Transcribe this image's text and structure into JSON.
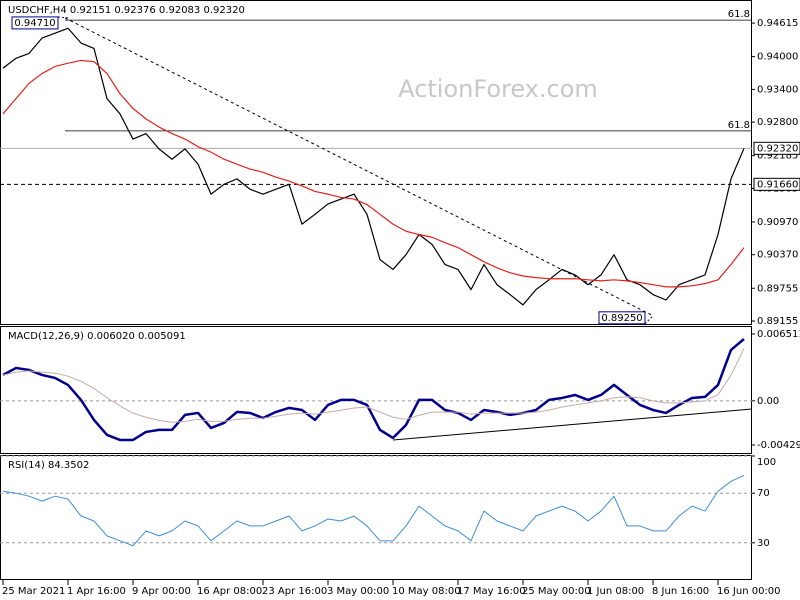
{
  "watermark": "ActionForex.com",
  "chart_data": [
    {
      "type": "line",
      "title": "USDCHF,H4  0.92151 0.92376 0.92083 0.92320",
      "categories": [
        "25 Mar 2021",
        null,
        null,
        null,
        null,
        "1 Apr 16:00",
        null,
        null,
        null,
        null,
        "9 Apr 00:00",
        null,
        null,
        null,
        null,
        "16 Apr 08:00",
        null,
        null,
        null,
        null,
        "23 Apr 16:00",
        null,
        null,
        null,
        null,
        "3 May 00:00",
        null,
        null,
        null,
        null,
        "10 May 08:00",
        null,
        null,
        null,
        null,
        "17 May 16:00",
        null,
        null,
        null,
        null,
        "25 May 00:00",
        null,
        null,
        null,
        null,
        "1 Jun 08:00",
        null,
        null,
        null,
        null,
        "8 Jun 16:00",
        null,
        null,
        null,
        null,
        "16 Jun 00:00",
        null,
        null
      ],
      "series": [
        {
          "color": "#000000",
          "values": [
            0.9379,
            0.9397,
            0.9406,
            0.9434,
            0.9443,
            0.9452,
            0.9425,
            0.9415,
            0.9323,
            0.9295,
            0.9249,
            0.9259,
            0.9231,
            0.9212,
            0.9231,
            0.9203,
            0.9148,
            0.9166,
            0.9176,
            0.9157,
            0.9148,
            0.9157,
            0.9166,
            0.9093,
            0.9111,
            0.913,
            0.9139,
            0.9148,
            0.9111,
            0.9028,
            0.901,
            0.9037,
            0.9074,
            0.9056,
            0.9019,
            0.901,
            0.8973,
            0.9019,
            0.8982,
            0.8964,
            0.8945,
            0.8973,
            0.8991,
            0.901,
            0.9,
            0.8982,
            0.9,
            0.9037,
            0.8991,
            0.8982,
            0.8964,
            0.8954,
            0.8982,
            0.8991,
            0.9,
            0.9074,
            0.9176,
            0.9232
          ]
        },
        {
          "color": "#e3211c",
          "values": [
            0.9295,
            0.9323,
            0.9351,
            0.9369,
            0.9382,
            0.9388,
            0.9393,
            0.9391,
            0.9369,
            0.9332,
            0.9305,
            0.9286,
            0.9271,
            0.9259,
            0.9249,
            0.9235,
            0.9225,
            0.9212,
            0.9203,
            0.9194,
            0.9188,
            0.9179,
            0.9172,
            0.9163,
            0.9153,
            0.9148,
            0.9142,
            0.9139,
            0.9129,
            0.9111,
            0.9093,
            0.908,
            0.9074,
            0.9069,
            0.9059,
            0.905,
            0.9037,
            0.9024,
            0.9013,
            0.9004,
            0.8998,
            0.8995,
            0.8993,
            0.8993,
            0.8993,
            0.8991,
            0.8989,
            0.8991,
            0.8989,
            0.8986,
            0.8982,
            0.8978,
            0.8978,
            0.898,
            0.8984,
            0.8991,
            0.9019,
            0.905
          ]
        }
      ],
      "ylim": [
        0.891,
        0.9502
      ],
      "yticks": [
        0.94615,
        {
          "value": 0.94,
          "label": "0.94000"
        },
        {
          "value": 0.934,
          "label": "0.93400"
        },
        {
          "value": 0.928,
          "label": "0.92800"
        },
        0.92185,
        0.91585,
        {
          "value": 0.9097,
          "label": "0.90970"
        },
        {
          "value": 0.9037,
          "label": "0.90370"
        },
        0.89755,
        0.89155
      ],
      "levels": [
        {
          "value": 0.9467,
          "label": "61.8"
        },
        {
          "value": 0.9264,
          "label": "61.8"
        }
      ],
      "price_marks": [
        {
          "value": 0.9232,
          "label": "0.92320",
          "dashed": false
        },
        {
          "value": 0.9166,
          "label": "0.91660",
          "dashed": true
        }
      ],
      "extremes": [
        {
          "value": 0.9471,
          "label": "0.94710",
          "index": 5
        },
        {
          "value": 0.8925,
          "label": "0.89250",
          "index": 50
        }
      ]
    },
    {
      "type": "line",
      "title": "MACD(12,26,9) 0.006020 0.005091",
      "series": [
        {
          "color": "#00008b",
          "width": 2.5,
          "values": [
            0.00252,
            0.0032,
            0.00301,
            0.00252,
            0.00223,
            0.00155,
            9e-05,
            -0.00186,
            -0.00332,
            -0.00381,
            -0.00381,
            -0.00303,
            -0.00283,
            -0.00283,
            -0.00137,
            -0.00118,
            -0.00264,
            -0.00215,
            -0.00108,
            -0.00118,
            -0.00167,
            -0.00108,
            -0.00069,
            -0.00089,
            -0.00186,
            -0.0004,
            9e-05,
            9e-05,
            -0.0004,
            -0.00283,
            -0.00361,
            -0.00235,
            9e-05,
            9e-05,
            -0.00089,
            -0.00118,
            -0.00186,
            -0.00089,
            -0.00108,
            -0.00137,
            -0.00118,
            -0.00089,
            9e-05,
            0.00028,
            0.00057,
            9e-05,
            0.00057,
            0.00155,
            0.00057,
            -0.0004,
            -0.00089,
            -0.00118,
            -0.0004,
            0.00028,
            0.00038,
            0.00155,
            0.00496,
            0.00602
          ]
        },
        {
          "color": "#c8a8a8",
          "width": 1,
          "values": [
            0.0025,
            0.0028,
            0.0029,
            0.0028,
            0.0027,
            0.0024,
            0.0019,
            0.0012,
            0.0003,
            -0.0005,
            -0.0012,
            -0.0016,
            -0.0019,
            -0.0021,
            -0.002,
            -0.0018,
            -0.002,
            -0.002,
            -0.0018,
            -0.0017,
            -0.0017,
            -0.0015,
            -0.0013,
            -0.0012,
            -0.0013,
            -0.0011,
            -0.0009,
            -0.0007,
            -0.0006,
            -0.0011,
            -0.0016,
            -0.0018,
            -0.0014,
            -0.0011,
            -0.0011,
            -0.0011,
            -0.0013,
            -0.0012,
            -0.0012,
            -0.0012,
            -0.0012,
            -0.0011,
            -0.0009,
            -0.0006,
            -0.0004,
            -0.0002,
            0,
            0.0003,
            0.0004,
            0.0003,
            0,
            -0.0002,
            -0.0002,
            -0.0001,
            0,
            0.0006,
            0.0025,
            0.0051
          ]
        }
      ],
      "ylim": [
        -0.00508,
        0.00719
      ],
      "yticks": [
        0.006511,
        {
          "value": 0,
          "label": "0.00"
        },
        -0.004298
      ],
      "zero_line": true
    },
    {
      "type": "line",
      "title": "RSI(14) 84.3502",
      "series": [
        {
          "color": "#3d8fd6",
          "width": 1,
          "values": [
            71.6,
            70,
            67.6,
            63.6,
            67.6,
            65.2,
            51.6,
            47.6,
            35.6,
            31.6,
            27.6,
            39.6,
            35.6,
            39.6,
            47.6,
            43.6,
            31.6,
            39.6,
            47.6,
            43.6,
            43.6,
            47.6,
            51.6,
            39.6,
            43.6,
            49.2,
            47.6,
            51.6,
            43.6,
            31.6,
            31.6,
            43.6,
            59.6,
            51.6,
            43.6,
            39.6,
            31.6,
            55.6,
            47.6,
            43.6,
            39.6,
            51.6,
            55.6,
            59.6,
            55.6,
            47.6,
            55.6,
            67.6,
            43.6,
            43.6,
            39.6,
            39.6,
            51.6,
            59.6,
            55.6,
            71.6,
            79.6,
            84.35
          ]
        }
      ],
      "ylim": [
        0,
        100
      ],
      "yticks": [
        30,
        70,
        100
      ],
      "grid": true
    }
  ]
}
